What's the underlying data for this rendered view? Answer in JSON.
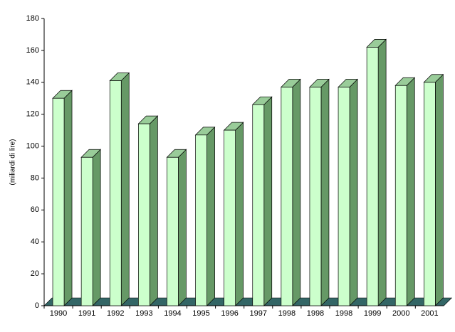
{
  "chart_data": {
    "type": "bar3d",
    "y_label": "(miliardi di lire)",
    "categories": [
      "1990",
      "1991",
      "1992",
      "1993",
      "1994",
      "1995",
      "1996",
      "1997",
      "1998",
      "1998",
      "1998",
      "1999",
      "2000",
      "2001"
    ],
    "values": [
      130,
      93,
      141,
      114,
      93,
      107,
      110,
      126,
      137,
      137,
      137,
      162,
      138,
      140
    ],
    "colors": {
      "front": "#ccffcc",
      "side": "#669966",
      "top": "#99cc99",
      "floor": "#336666"
    },
    "ylim": [
      0,
      180
    ],
    "yticks": [
      0,
      20,
      40,
      60,
      80,
      100,
      120,
      140,
      160,
      180
    ],
    "grid": false
  }
}
